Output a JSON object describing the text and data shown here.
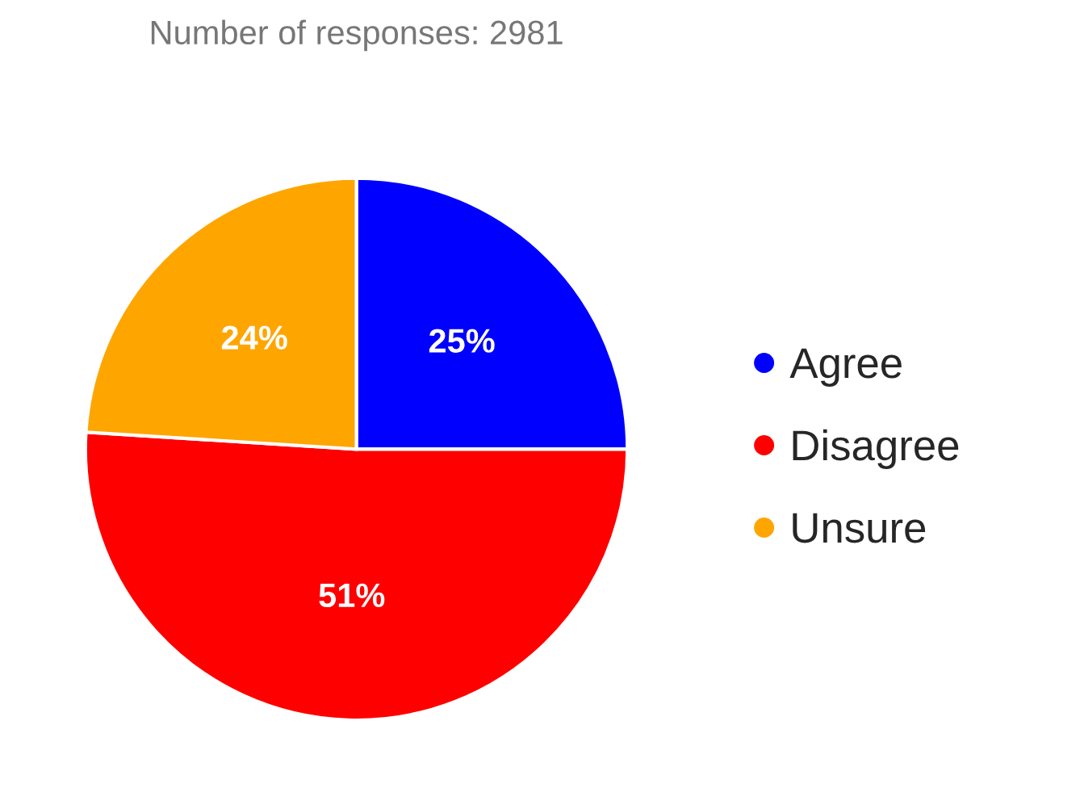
{
  "chart_data": {
    "type": "pie",
    "subtitle": "Number of responses: 2981",
    "categories": [
      "Agree",
      "Disagree",
      "Unsure"
    ],
    "values": [
      25,
      51,
      24
    ],
    "colors": [
      "#0000ff",
      "#ff0000",
      "#ffa500"
    ],
    "value_labels": [
      "25%",
      "51%",
      "24%"
    ],
    "legend": "right",
    "marker": "circle"
  }
}
